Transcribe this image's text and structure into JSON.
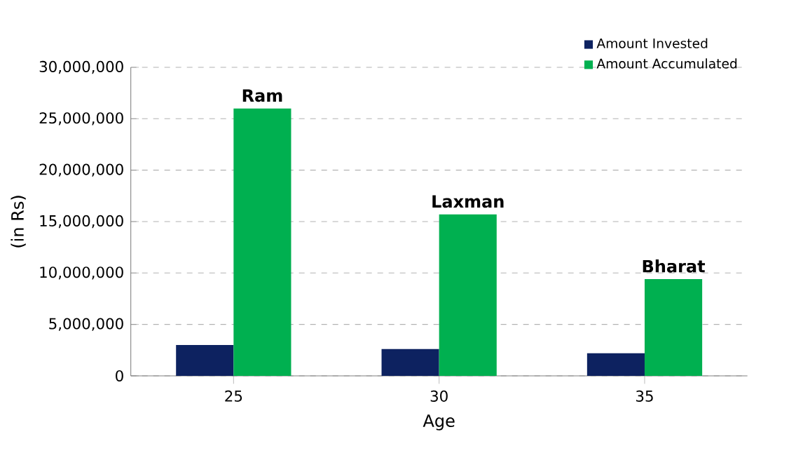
{
  "chart_data": {
    "type": "bar",
    "xlabel": "Age",
    "ylabel": "(in Rs)",
    "categories": [
      "25",
      "30",
      "35"
    ],
    "series": [
      {
        "name": "Amount Invested",
        "color": "#0d2260",
        "values": [
          3000000,
          2600000,
          2200000
        ]
      },
      {
        "name": "Amount Accumulated",
        "color": "#00b050",
        "values": [
          26000000,
          15700000,
          9400000
        ]
      }
    ],
    "ylim": [
      0,
      30000000
    ],
    "yticks": [
      {
        "value": 0,
        "label": "0"
      },
      {
        "value": 5000000,
        "label": "5,000,000"
      },
      {
        "value": 10000000,
        "label": "10,000,000"
      },
      {
        "value": 15000000,
        "label": "15,000,000"
      },
      {
        "value": 20000000,
        "label": "20,000,000"
      },
      {
        "value": 25000000,
        "label": "25,000,000"
      },
      {
        "value": 30000000,
        "label": "30,000,000"
      }
    ],
    "annotations": [
      {
        "text": "Ram",
        "x": "25",
        "y": 26000000
      },
      {
        "text": "Laxman",
        "x": "30",
        "y": 15700000
      },
      {
        "text": "Bharat",
        "x": "35",
        "y": 9400000
      }
    ],
    "grid": "y",
    "legend": "top right"
  }
}
